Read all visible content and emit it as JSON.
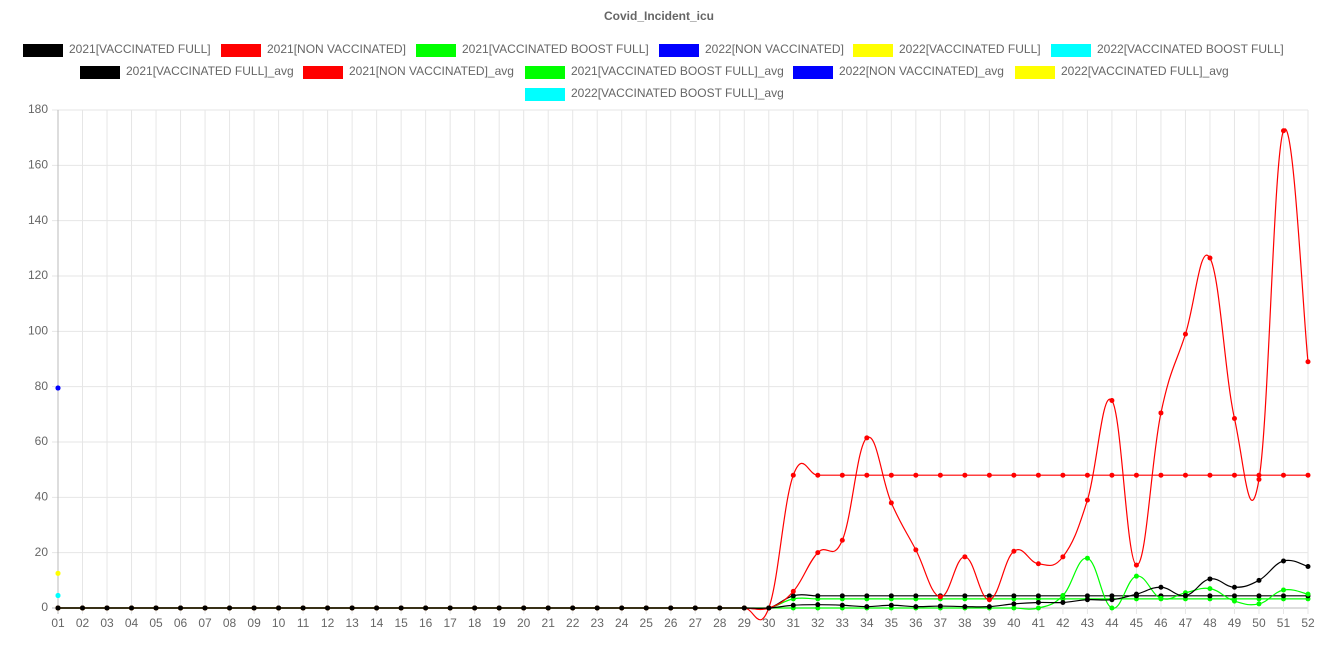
{
  "chart_data": {
    "type": "line",
    "title": "Covid_Incident_icu",
    "categories": [
      "01",
      "02",
      "03",
      "04",
      "05",
      "06",
      "07",
      "08",
      "09",
      "10",
      "11",
      "12",
      "13",
      "14",
      "15",
      "16",
      "17",
      "18",
      "19",
      "20",
      "21",
      "22",
      "23",
      "24",
      "25",
      "26",
      "27",
      "28",
      "29",
      "30",
      "31",
      "32",
      "33",
      "34",
      "35",
      "36",
      "37",
      "38",
      "39",
      "40",
      "41",
      "42",
      "43",
      "44",
      "45",
      "46",
      "47",
      "48",
      "49",
      "50",
      "51",
      "52"
    ],
    "ylim": [
      0,
      180
    ],
    "yticks": [
      0,
      20,
      40,
      60,
      80,
      100,
      120,
      140,
      160,
      180
    ],
    "grid": true,
    "legend": "top",
    "series": [
      {
        "name": "2021[VACCINATED FULL]",
        "color": "#000000",
        "values": [
          0,
          0,
          0,
          0,
          0,
          0,
          0,
          0,
          0,
          0,
          0,
          0,
          0,
          0,
          0,
          0,
          0,
          0,
          0,
          0,
          0,
          0,
          0,
          0,
          0,
          0,
          0,
          0,
          0,
          0,
          1,
          1.2,
          1,
          0.5,
          1,
          0.5,
          0.7,
          0.5,
          0.5,
          1.5,
          2,
          2,
          3,
          3,
          5,
          7.5,
          4.5,
          10.5,
          7.5,
          10,
          17,
          15
        ]
      },
      {
        "name": "2021[NON VACCINATED]",
        "color": "#ff0000",
        "values": [
          0,
          0,
          0,
          0,
          0,
          0,
          0,
          0,
          0,
          0,
          0,
          0,
          0,
          0,
          0,
          0,
          0,
          0,
          0,
          0,
          0,
          0,
          0,
          0,
          0,
          0,
          0,
          0,
          0,
          0,
          6,
          20,
          24.5,
          61.5,
          38,
          21,
          4,
          18.5,
          3,
          20.5,
          16,
          18.5,
          39,
          75,
          15.5,
          70.5,
          99,
          126.5,
          68.5,
          46.5,
          172.5,
          89
        ]
      },
      {
        "name": "2021[VACCINATED BOOST FULL]",
        "color": "#00ff00",
        "values": [
          0,
          0,
          0,
          0,
          0,
          0,
          0,
          0,
          0,
          0,
          0,
          0,
          0,
          0,
          0,
          0,
          0,
          0,
          0,
          0,
          0,
          0,
          0,
          0,
          0,
          0,
          0,
          0,
          0,
          0,
          0,
          0,
          0,
          0,
          0,
          0,
          0,
          0,
          0,
          0,
          0,
          4.5,
          18,
          0,
          11.5,
          3.5,
          5.5,
          7,
          2.5,
          1.5,
          6.5,
          5
        ]
      },
      {
        "name": "2022[NON VACCINATED]",
        "color": "#0000ff",
        "values": [
          79.5,
          null,
          null,
          null,
          null,
          null,
          null,
          null,
          null,
          null,
          null,
          null,
          null,
          null,
          null,
          null,
          null,
          null,
          null,
          null,
          null,
          null,
          null,
          null,
          null,
          null,
          null,
          null,
          null,
          null,
          null,
          null,
          null,
          null,
          null,
          null,
          null,
          null,
          null,
          null,
          null,
          null,
          null,
          null,
          null,
          null,
          null,
          null,
          null,
          null,
          null,
          null
        ]
      },
      {
        "name": "2022[VACCINATED FULL]",
        "color": "#ffff00",
        "values": [
          12.5,
          null,
          null,
          null,
          null,
          null,
          null,
          null,
          null,
          null,
          null,
          null,
          null,
          null,
          null,
          null,
          null,
          null,
          null,
          null,
          null,
          null,
          null,
          null,
          null,
          null,
          null,
          null,
          null,
          null,
          null,
          null,
          null,
          null,
          null,
          null,
          null,
          null,
          null,
          null,
          null,
          null,
          null,
          null,
          null,
          null,
          null,
          null,
          null,
          null,
          null,
          null
        ]
      },
      {
        "name": "2022[VACCINATED BOOST FULL]",
        "color": "#00ffff",
        "values": [
          4.5,
          null,
          null,
          null,
          null,
          null,
          null,
          null,
          null,
          null,
          null,
          null,
          null,
          null,
          null,
          null,
          null,
          null,
          null,
          null,
          null,
          null,
          null,
          null,
          null,
          null,
          null,
          null,
          null,
          null,
          null,
          null,
          null,
          null,
          null,
          null,
          null,
          null,
          null,
          null,
          null,
          null,
          null,
          null,
          null,
          null,
          null,
          null,
          null,
          null,
          null,
          null
        ]
      },
      {
        "name": "2021[VACCINATED FULL]_avg",
        "color": "#000000",
        "values": [
          0,
          0,
          0,
          0,
          0,
          0,
          0,
          0,
          0,
          0,
          0,
          0,
          0,
          0,
          0,
          0,
          0,
          0,
          0,
          0,
          0,
          0,
          0,
          0,
          0,
          0,
          0,
          0,
          0,
          0,
          4.4,
          4.4,
          4.4,
          4.4,
          4.4,
          4.4,
          4.4,
          4.4,
          4.4,
          4.4,
          4.4,
          4.4,
          4.4,
          4.4,
          4.4,
          4.4,
          4.4,
          4.4,
          4.4,
          4.4,
          4.4,
          4.4
        ]
      },
      {
        "name": "2021[NON VACCINATED]_avg",
        "color": "#ff0000",
        "values": [
          0,
          0,
          0,
          0,
          0,
          0,
          0,
          0,
          0,
          0,
          0,
          0,
          0,
          0,
          0,
          0,
          0,
          0,
          0,
          0,
          0,
          0,
          0,
          0,
          0,
          0,
          0,
          0,
          0,
          0,
          48,
          48,
          48,
          48,
          48,
          48,
          48,
          48,
          48,
          48,
          48,
          48,
          48,
          48,
          48,
          48,
          48,
          48,
          48,
          48,
          48,
          48
        ]
      },
      {
        "name": "2021[VACCINATED BOOST FULL]_avg",
        "color": "#00ff00",
        "values": [
          0,
          0,
          0,
          0,
          0,
          0,
          0,
          0,
          0,
          0,
          0,
          0,
          0,
          0,
          0,
          0,
          0,
          0,
          0,
          0,
          0,
          0,
          0,
          0,
          0,
          0,
          0,
          0,
          0,
          0,
          3.3,
          3.3,
          3.3,
          3.3,
          3.3,
          3.3,
          3.3,
          3.3,
          3.3,
          3.3,
          3.3,
          3.3,
          3.3,
          3.3,
          3.3,
          3.3,
          3.3,
          3.3,
          3.3,
          3.3,
          3.3,
          3.3
        ]
      },
      {
        "name": "2022[NON VACCINATED]_avg",
        "color": "#0000ff",
        "values": [
          79.5,
          null,
          null,
          null,
          null,
          null,
          null,
          null,
          null,
          null,
          null,
          null,
          null,
          null,
          null,
          null,
          null,
          null,
          null,
          null,
          null,
          null,
          null,
          null,
          null,
          null,
          null,
          null,
          null,
          null,
          null,
          null,
          null,
          null,
          null,
          null,
          null,
          null,
          null,
          null,
          null,
          null,
          null,
          null,
          null,
          null,
          null,
          null,
          null,
          null,
          null,
          null
        ]
      },
      {
        "name": "2022[VACCINATED FULL]_avg",
        "color": "#ffff00",
        "values": [
          12.5,
          null,
          null,
          null,
          null,
          null,
          null,
          null,
          null,
          null,
          null,
          null,
          null,
          null,
          null,
          null,
          null,
          null,
          null,
          null,
          null,
          null,
          null,
          null,
          null,
          null,
          null,
          null,
          null,
          null,
          null,
          null,
          null,
          null,
          null,
          null,
          null,
          null,
          null,
          null,
          null,
          null,
          null,
          null,
          null,
          null,
          null,
          null,
          null,
          null,
          null,
          null
        ]
      },
      {
        "name": "2022[VACCINATED BOOST FULL]_avg",
        "color": "#00ffff",
        "values": [
          4.5,
          null,
          null,
          null,
          null,
          null,
          null,
          null,
          null,
          null,
          null,
          null,
          null,
          null,
          null,
          null,
          null,
          null,
          null,
          null,
          null,
          null,
          null,
          null,
          null,
          null,
          null,
          null,
          null,
          null,
          null,
          null,
          null,
          null,
          null,
          null,
          null,
          null,
          null,
          null,
          null,
          null,
          null,
          null,
          null,
          null,
          null,
          null,
          null,
          null,
          null,
          null
        ]
      }
    ]
  }
}
